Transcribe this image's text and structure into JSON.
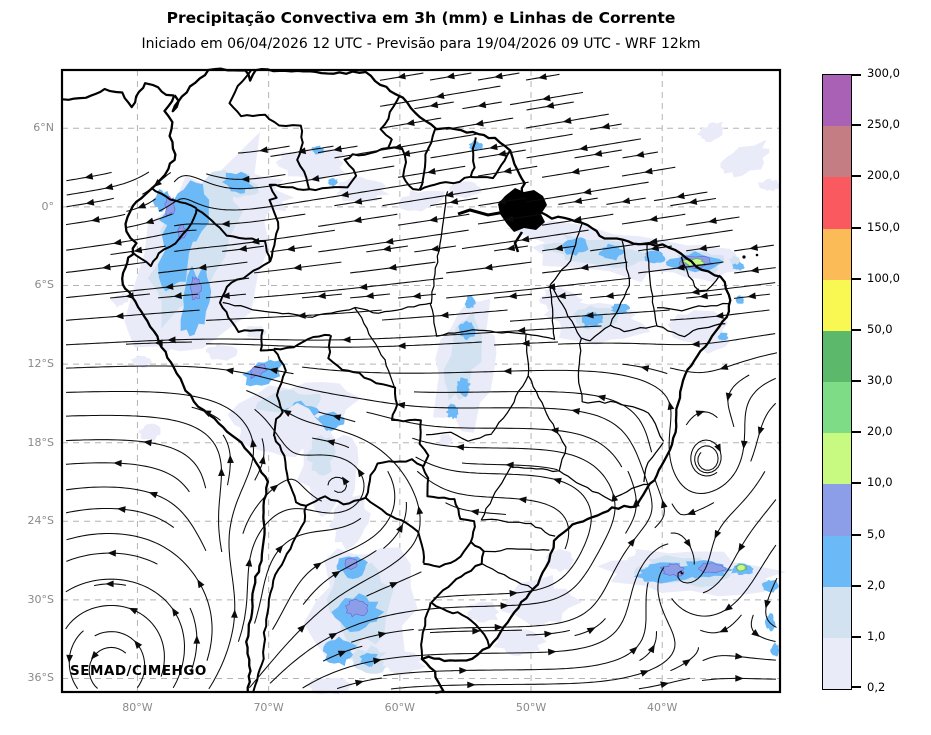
{
  "header": {
    "title": "Precipitação Convectiva em 3h (mm) e Linhas de Corrente",
    "subtitle": "Iniciado em 06/04/2026 12 UTC - Previsão para 19/04/2026 09 UTC - WRF 12km"
  },
  "watermark": "SEMAD/CIMEHGO",
  "axes": {
    "lat_labels": [
      "6°N",
      "0°",
      "6°S",
      "12°S",
      "18°S",
      "24°S",
      "30°S",
      "36°S"
    ],
    "lon_labels": [
      "80°W",
      "70°W",
      "60°W",
      "50°W",
      "40°W"
    ]
  },
  "colorbar": {
    "tick_labels_top_to_bottom": [
      "300,0",
      "250,0",
      "200,0",
      "150,0",
      "100,0",
      "50,0",
      "30,0",
      "20,0",
      "10,0",
      "5,0",
      "2,0",
      "1,0",
      "0,2"
    ],
    "segment_colors_bottom_to_top": [
      "#eaebf9",
      "#d2e2f0",
      "#6cb9f8",
      "#8c9ee8",
      "#c8fa82",
      "#7edc87",
      "#5cb86a",
      "#f9f853",
      "#fbbb56",
      "#fa5a5f",
      "#c47d82",
      "#a961b5"
    ]
  },
  "map": {
    "style": {
      "streamline_color": "#0b0b0b",
      "border_color": "#000000",
      "gridline_color": "#b3b3b3",
      "background": "#ffffff"
    },
    "precipitation_areas": [
      {
        "area": "Andes — Colômbia/Equador/Peru",
        "intensity_mm": "2–10"
      },
      {
        "area": "Costa norte — Pará/Maranhão/Ceará",
        "intensity_mm": "2–20"
      },
      {
        "area": "Brasil central (faixa diagonal)",
        "intensity_mm": "1–5"
      },
      {
        "area": "Rondônia/Bolívia",
        "intensity_mm": "2–10"
      },
      {
        "area": "Paraguai / Bolívia (sul)",
        "intensity_mm": "2–10"
      },
      {
        "area": "Oceano — costa sudeste do Brasil",
        "intensity_mm": "2–20"
      },
      {
        "area": "Maranhão/Piauí",
        "intensity_mm": "1–5"
      }
    ]
  }
}
